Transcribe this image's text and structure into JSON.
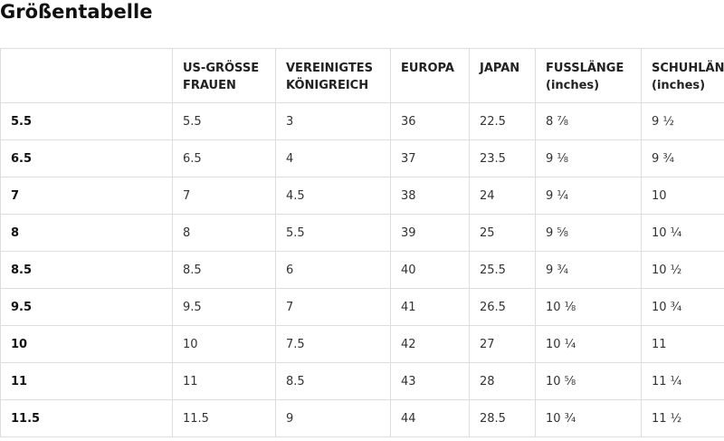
{
  "title": "Größentabelle",
  "table": {
    "columns": [
      {
        "line1": "",
        "line2": ""
      },
      {
        "line1": "US-GRÖSSE",
        "line2": "FRAUEN"
      },
      {
        "line1": "VEREINIGTES",
        "line2": "KÖNIGREICH"
      },
      {
        "line1": "EUROPA",
        "line2": ""
      },
      {
        "line1": "JAPAN",
        "line2": ""
      },
      {
        "line1": "FUSSLÄNGE",
        "line2": "(inches)"
      },
      {
        "line1": "SCHUHLÄNGE",
        "line2": "(inches)"
      }
    ],
    "rows": [
      [
        "5.5",
        "5.5",
        "3",
        "36",
        "22.5",
        "8 ⅞",
        "9 ½"
      ],
      [
        "6.5",
        "6.5",
        "4",
        "37",
        "23.5",
        "9 ⅛",
        "9 ¾"
      ],
      [
        "7",
        "7",
        "4.5",
        "38",
        "24",
        "9 ¼",
        "10"
      ],
      [
        "8",
        "8",
        "5.5",
        "39",
        "25",
        "9 ⅝",
        "10 ¼"
      ],
      [
        "8.5",
        "8.5",
        "6",
        "40",
        "25.5",
        "9 ¾",
        "10 ½"
      ],
      [
        "9.5",
        "9.5",
        "7",
        "41",
        "26.5",
        "10 ⅛",
        "10 ¾"
      ],
      [
        "10",
        "10",
        "7.5",
        "42",
        "27",
        "10 ¼",
        "11"
      ],
      [
        "11",
        "11",
        "8.5",
        "43",
        "28",
        "10 ⅝",
        "11 ¼"
      ],
      [
        "11.5",
        "11.5",
        "9",
        "44",
        "28.5",
        "10 ¾",
        "11 ½"
      ]
    ]
  }
}
